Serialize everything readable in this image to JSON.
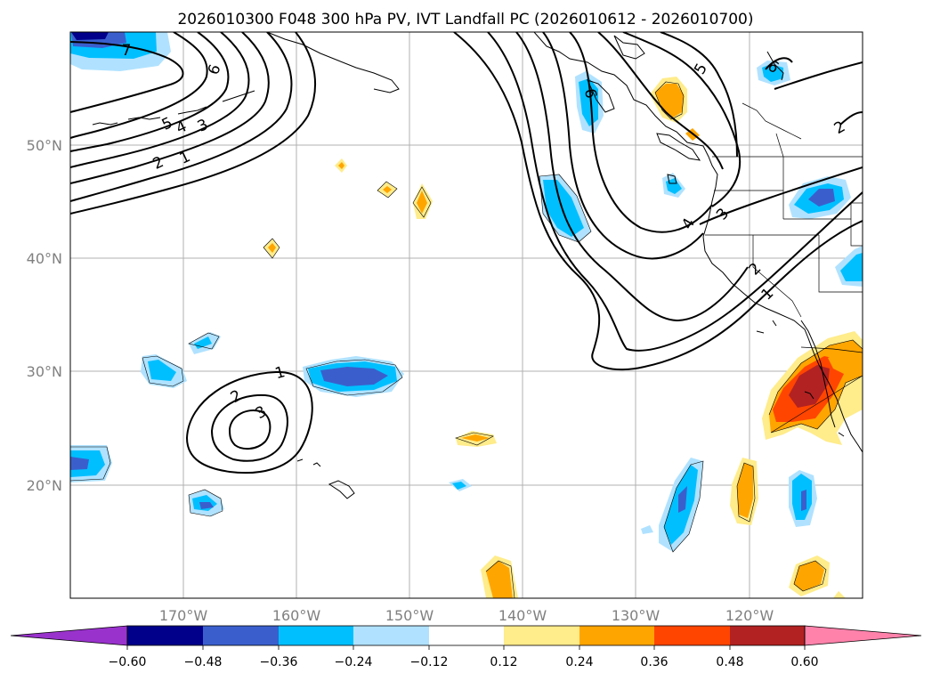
{
  "title": "2026010300 F048 300 hPa PV, IVT Landfall PC (2026010612 - 2026010700)",
  "map": {
    "lat_labels": [
      {
        "value": 50,
        "label": "50°N"
      },
      {
        "value": 40,
        "label": "40°N"
      },
      {
        "value": 30,
        "label": "30°N"
      },
      {
        "value": 20,
        "label": "20°N"
      }
    ],
    "lon_labels": [
      {
        "value": -170,
        "label": "170°W"
      },
      {
        "value": -160,
        "label": "160°W"
      },
      {
        "value": -150,
        "label": "150°W"
      },
      {
        "value": -140,
        "label": "140°W"
      },
      {
        "value": -130,
        "label": "130°W"
      },
      {
        "value": -120,
        "label": "120°W"
      }
    ],
    "pv_contour_labels": [
      "7",
      "6",
      "5",
      "4",
      "3",
      "2",
      "1",
      "6",
      "5",
      "4",
      "3",
      "2",
      "1",
      "1",
      "2",
      "3",
      "6",
      "2"
    ]
  },
  "colorbar": {
    "tick_labels": [
      "−0.60",
      "−0.48",
      "−0.36",
      "−0.24",
      "−0.12",
      "0.12",
      "0.24",
      "0.36",
      "0.48",
      "0.60"
    ],
    "colors": [
      "#9932CC",
      "#00008B",
      "#3A5FCD",
      "#00BFFF",
      "#B0E2FF",
      "#FFFFFF",
      "#FFEC8B",
      "#FFA500",
      "#FF4500",
      "#B22222",
      "#FF82AB"
    ]
  }
}
